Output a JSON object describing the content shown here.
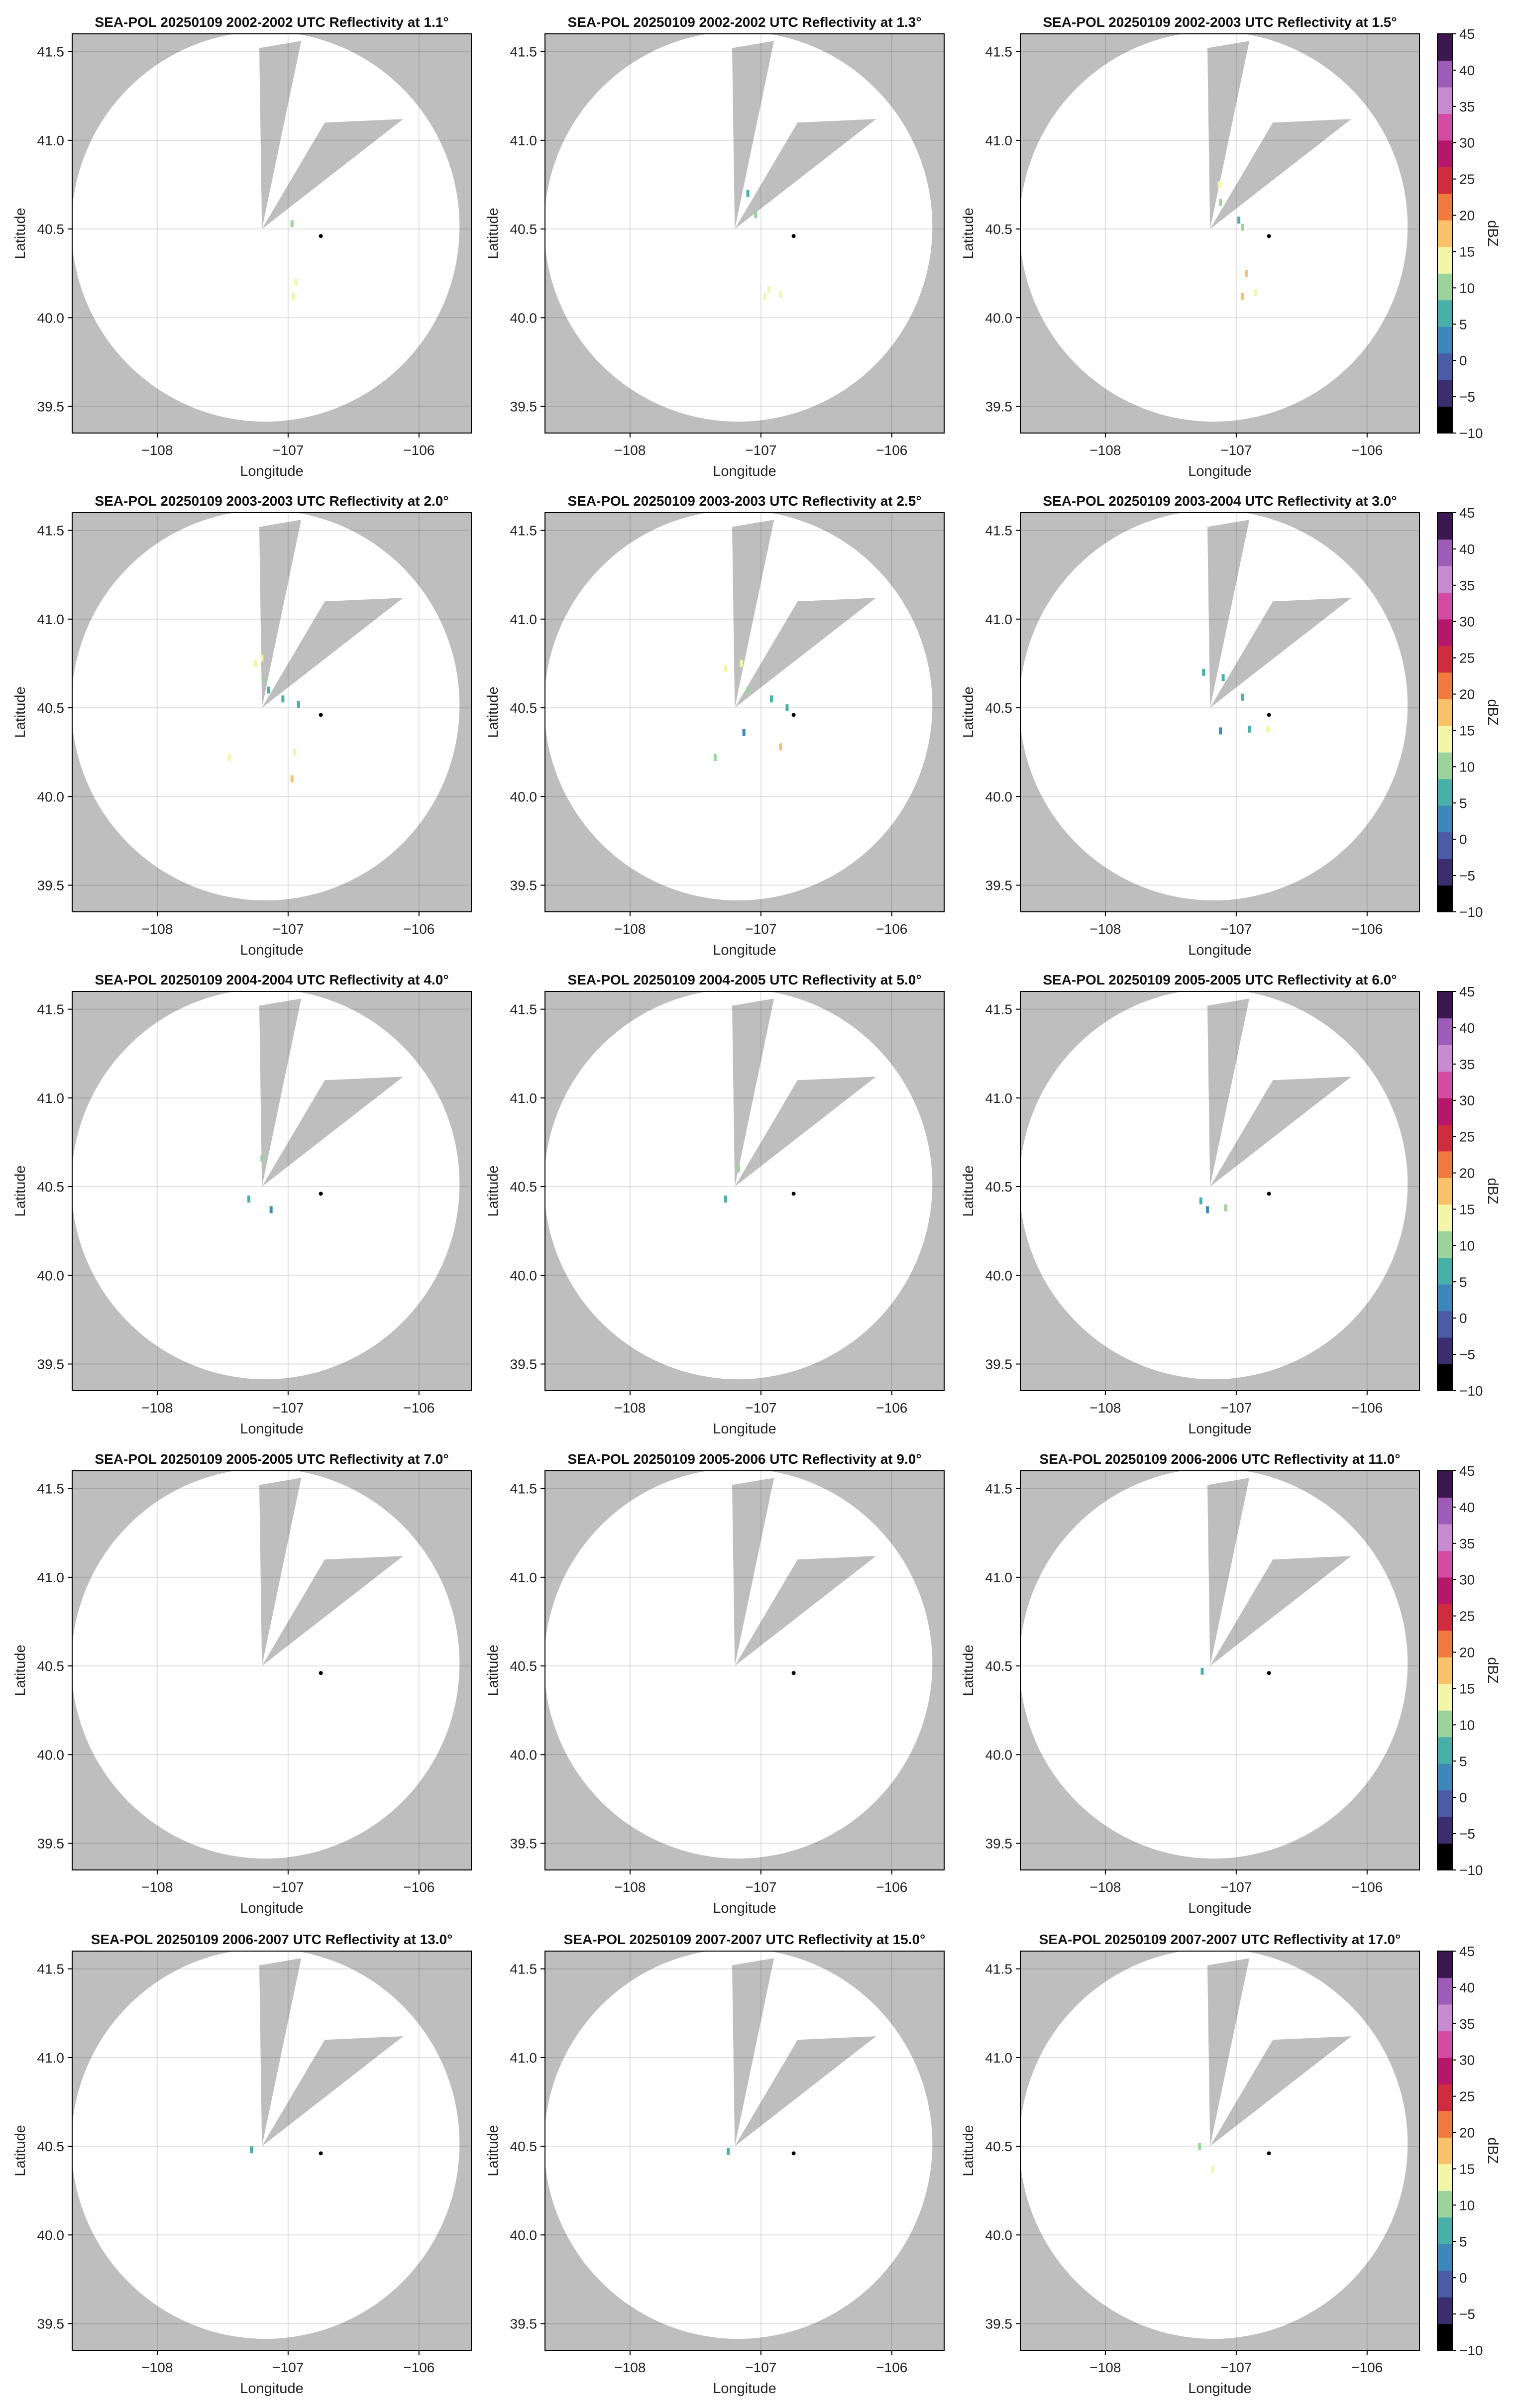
{
  "chart_data": {
    "type": "heatmap",
    "layout": "5 rows x 3 columns of radar PPI panels",
    "xlabel": "Longitude",
    "ylabel": "Latitude",
    "xlim": [
      -108.65,
      -105.6
    ],
    "ylim": [
      39.35,
      41.6
    ],
    "xticks": [
      -108,
      -107,
      -106
    ],
    "xtick_labels": [
      "−108",
      "−107",
      "−106"
    ],
    "yticks": [
      39.5,
      40.0,
      40.5,
      41.0,
      41.5
    ],
    "ytick_labels": [
      "39.5",
      "40.0",
      "40.5",
      "41.0",
      "41.5"
    ],
    "grid": true,
    "radar_location": {
      "lon": -107.2,
      "lat": 40.5
    },
    "marked_point": {
      "lon": -106.75,
      "lat": 40.46
    },
    "no_data_color": "#bebebe",
    "colorbar": {
      "label": "dBZ",
      "range": [
        -10,
        45
      ],
      "ticks": [
        -10,
        -5,
        0,
        5,
        10,
        15,
        20,
        25,
        30,
        35,
        40,
        45
      ],
      "tick_labels": [
        "−10",
        "−5",
        "0",
        "5",
        "10",
        "15",
        "20",
        "25",
        "30",
        "35",
        "40",
        "45"
      ],
      "colors": [
        "#000000",
        "#3b2d6e",
        "#4a5ca6",
        "#3d88b8",
        "#48b0a8",
        "#9ad49c",
        "#f3f6a8",
        "#f9c26a",
        "#ef7b3f",
        "#cf2c3f",
        "#b5176b",
        "#d24ca4",
        "#c98bd0",
        "#9e5cb8",
        "#3d1850"
      ]
    },
    "panels": [
      {
        "title": "SEA-POL 20250109 2002-2002 UTC Reflectivity at 1.1°",
        "elevation_deg": 1.1,
        "echoes": [
          {
            "lon": -106.97,
            "lat": 40.53,
            "dbz": 10
          },
          {
            "lon": -106.94,
            "lat": 40.2,
            "dbz": 14
          },
          {
            "lon": -106.96,
            "lat": 40.12,
            "dbz": 14
          }
        ]
      },
      {
        "title": "SEA-POL 20250109 2002-2002 UTC Reflectivity at 1.3°",
        "elevation_deg": 1.3,
        "echoes": [
          {
            "lon": -107.1,
            "lat": 40.7,
            "dbz": 8
          },
          {
            "lon": -107.04,
            "lat": 40.58,
            "dbz": 10
          },
          {
            "lon": -106.94,
            "lat": 40.16,
            "dbz": 15
          },
          {
            "lon": -106.85,
            "lat": 40.13,
            "dbz": 15
          },
          {
            "lon": -106.97,
            "lat": 40.12,
            "dbz": 14
          }
        ]
      },
      {
        "title": "SEA-POL 20250109 2002-2003 UTC Reflectivity at 1.5°",
        "elevation_deg": 1.5,
        "echoes": [
          {
            "lon": -107.13,
            "lat": 40.75,
            "dbz": 12
          },
          {
            "lon": -107.12,
            "lat": 40.65,
            "dbz": 10
          },
          {
            "lon": -106.98,
            "lat": 40.55,
            "dbz": 8
          },
          {
            "lon": -106.95,
            "lat": 40.51,
            "dbz": 9
          },
          {
            "lon": -106.92,
            "lat": 40.25,
            "dbz": 16
          },
          {
            "lon": -106.95,
            "lat": 40.12,
            "dbz": 17
          },
          {
            "lon": -106.85,
            "lat": 40.14,
            "dbz": 15
          }
        ]
      },
      {
        "title": "SEA-POL 20250109 2003-2003 UTC Reflectivity at 2.0°",
        "elevation_deg": 2.0,
        "echoes": [
          {
            "lon": -107.25,
            "lat": 40.75,
            "dbz": 12
          },
          {
            "lon": -107.2,
            "lat": 40.78,
            "dbz": 14
          },
          {
            "lon": -107.18,
            "lat": 40.66,
            "dbz": 10
          },
          {
            "lon": -107.15,
            "lat": 40.6,
            "dbz": 8
          },
          {
            "lon": -107.04,
            "lat": 40.55,
            "dbz": 6
          },
          {
            "lon": -106.92,
            "lat": 40.52,
            "dbz": 7
          },
          {
            "lon": -106.95,
            "lat": 40.25,
            "dbz": 15
          },
          {
            "lon": -106.97,
            "lat": 40.1,
            "dbz": 17
          },
          {
            "lon": -107.45,
            "lat": 40.22,
            "dbz": 12
          }
        ]
      },
      {
        "title": "SEA-POL 20250109 2003-2003 UTC Reflectivity at 2.5°",
        "elevation_deg": 2.5,
        "echoes": [
          {
            "lon": -107.27,
            "lat": 40.72,
            "dbz": 12
          },
          {
            "lon": -107.15,
            "lat": 40.75,
            "dbz": 14
          },
          {
            "lon": -107.1,
            "lat": 40.6,
            "dbz": 10
          },
          {
            "lon": -106.92,
            "lat": 40.55,
            "dbz": 7
          },
          {
            "lon": -106.8,
            "lat": 40.5,
            "dbz": 6
          },
          {
            "lon": -107.13,
            "lat": 40.36,
            "dbz": 2
          },
          {
            "lon": -106.85,
            "lat": 40.28,
            "dbz": 16
          },
          {
            "lon": -107.35,
            "lat": 40.22,
            "dbz": 9
          }
        ]
      },
      {
        "title": "SEA-POL 20250109 2003-2004 UTC Reflectivity at 3.0°",
        "elevation_deg": 3.0,
        "echoes": [
          {
            "lon": -107.25,
            "lat": 40.7,
            "dbz": 6
          },
          {
            "lon": -107.1,
            "lat": 40.67,
            "dbz": 8
          },
          {
            "lon": -106.95,
            "lat": 40.56,
            "dbz": 6
          },
          {
            "lon": -107.12,
            "lat": 40.37,
            "dbz": 1
          },
          {
            "lon": -106.9,
            "lat": 40.38,
            "dbz": 8
          },
          {
            "lon": -106.76,
            "lat": 40.38,
            "dbz": 12
          }
        ]
      },
      {
        "title": "SEA-POL 20250109 2004-2004 UTC Reflectivity at 4.0°",
        "elevation_deg": 4.0,
        "echoes": [
          {
            "lon": -107.2,
            "lat": 40.66,
            "dbz": 10
          },
          {
            "lon": -107.3,
            "lat": 40.43,
            "dbz": 6
          },
          {
            "lon": -107.13,
            "lat": 40.37,
            "dbz": 2
          }
        ]
      },
      {
        "title": "SEA-POL 20250109 2004-2005 UTC Reflectivity at 5.0°",
        "elevation_deg": 5.0,
        "echoes": [
          {
            "lon": -107.17,
            "lat": 40.6,
            "dbz": 10
          },
          {
            "lon": -107.27,
            "lat": 40.43,
            "dbz": 6
          }
        ]
      },
      {
        "title": "SEA-POL 20250109 2005-2005 UTC Reflectivity at 6.0°",
        "elevation_deg": 6.0,
        "echoes": [
          {
            "lon": -107.27,
            "lat": 40.42,
            "dbz": 6
          },
          {
            "lon": -107.22,
            "lat": 40.37,
            "dbz": 2
          },
          {
            "lon": -107.08,
            "lat": 40.38,
            "dbz": 9
          }
        ]
      },
      {
        "title": "SEA-POL 20250109 2005-2005 UTC Reflectivity at 7.0°",
        "elevation_deg": 7.0,
        "echoes": []
      },
      {
        "title": "SEA-POL 20250109 2005-2006 UTC Reflectivity at 9.0°",
        "elevation_deg": 9.0,
        "echoes": []
      },
      {
        "title": "SEA-POL 20250109 2006-2006 UTC Reflectivity at 11.0°",
        "elevation_deg": 11.0,
        "echoes": [
          {
            "lon": -107.26,
            "lat": 40.47,
            "dbz": 6
          }
        ]
      },
      {
        "title": "SEA-POL 20250109 2006-2007 UTC Reflectivity at 13.0°",
        "elevation_deg": 13.0,
        "echoes": [
          {
            "lon": -107.28,
            "lat": 40.48,
            "dbz": 6
          }
        ]
      },
      {
        "title": "SEA-POL 20250109 2007-2007 UTC Reflectivity at 15.0°",
        "elevation_deg": 15.0,
        "echoes": [
          {
            "lon": -107.25,
            "lat": 40.47,
            "dbz": 6
          }
        ]
      },
      {
        "title": "SEA-POL 20250109 2007-2007 UTC Reflectivity at 17.0°",
        "elevation_deg": 17.0,
        "echoes": [
          {
            "lon": -107.28,
            "lat": 40.5,
            "dbz": 10
          },
          {
            "lon": -107.18,
            "lat": 40.37,
            "dbz": 12
          }
        ]
      }
    ]
  }
}
